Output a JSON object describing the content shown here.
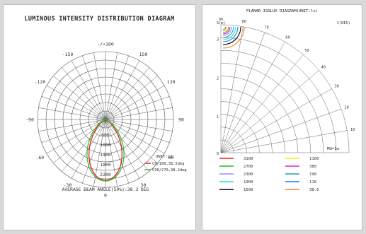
{
  "left": {
    "title": "LUMINOUS INTENSITY DISTRIBUTION DIAGRAM",
    "angle_labels": [
      {
        "text": "-/+180",
        "angle": 180
      },
      {
        "text": "-150",
        "angle": -150
      },
      {
        "text": "150",
        "angle": 150
      },
      {
        "text": "-120",
        "angle": -120
      },
      {
        "text": "120",
        "angle": 120
      },
      {
        "text": "-90",
        "angle": -90
      },
      {
        "text": "90",
        "angle": 90
      },
      {
        "text": "-60",
        "angle": -60
      },
      {
        "text": "60",
        "angle": 60
      },
      {
        "text": "-30",
        "angle": -30
      },
      {
        "text": "30",
        "angle": 30
      },
      {
        "text": "0",
        "angle": 0
      }
    ],
    "radial_labels": [
      "600",
      "1000",
      "1400",
      "1800",
      "2200"
    ],
    "unit": "UNIT:cd",
    "legend": [
      {
        "text": "C0/180,38.5deg",
        "color": "#e02020"
      },
      {
        "text": "C90/270,38.2deg",
        "color": "#33c233"
      }
    ],
    "beam_angle": "AVERAGE BEAM ANGLE(50%):38.3 DEG"
  },
  "right": {
    "title": "PLANAR ISOLUX DIAGRAM(UNIT:lx)",
    "axis_corner": "0",
    "s_label": "S(m)",
    "c_label": "C(DEG)",
    "s_ticks": [
      "1",
      "2",
      "3"
    ],
    "c_ticks": [
      "10",
      "20",
      "30",
      "40",
      "50",
      "60",
      "70",
      "80",
      "90"
    ],
    "mh": "MH=1m",
    "legend": [
      {
        "value": "3100",
        "color": "#e02020"
      },
      {
        "value": "1100",
        "color": "#f0f000"
      },
      {
        "value": "2700",
        "color": "#22bb22"
      },
      {
        "value": "380",
        "color": "#e020e0"
      },
      {
        "value": "2300",
        "color": "#9090ff"
      },
      {
        "value": "190",
        "color": "#20a0a0"
      },
      {
        "value": "1900",
        "color": "#20e0e0"
      },
      {
        "value": "110",
        "color": "#2080f0"
      },
      {
        "value": "1500",
        "color": "#000000"
      },
      {
        "value": "38.0",
        "color": "#f08030"
      }
    ]
  }
}
